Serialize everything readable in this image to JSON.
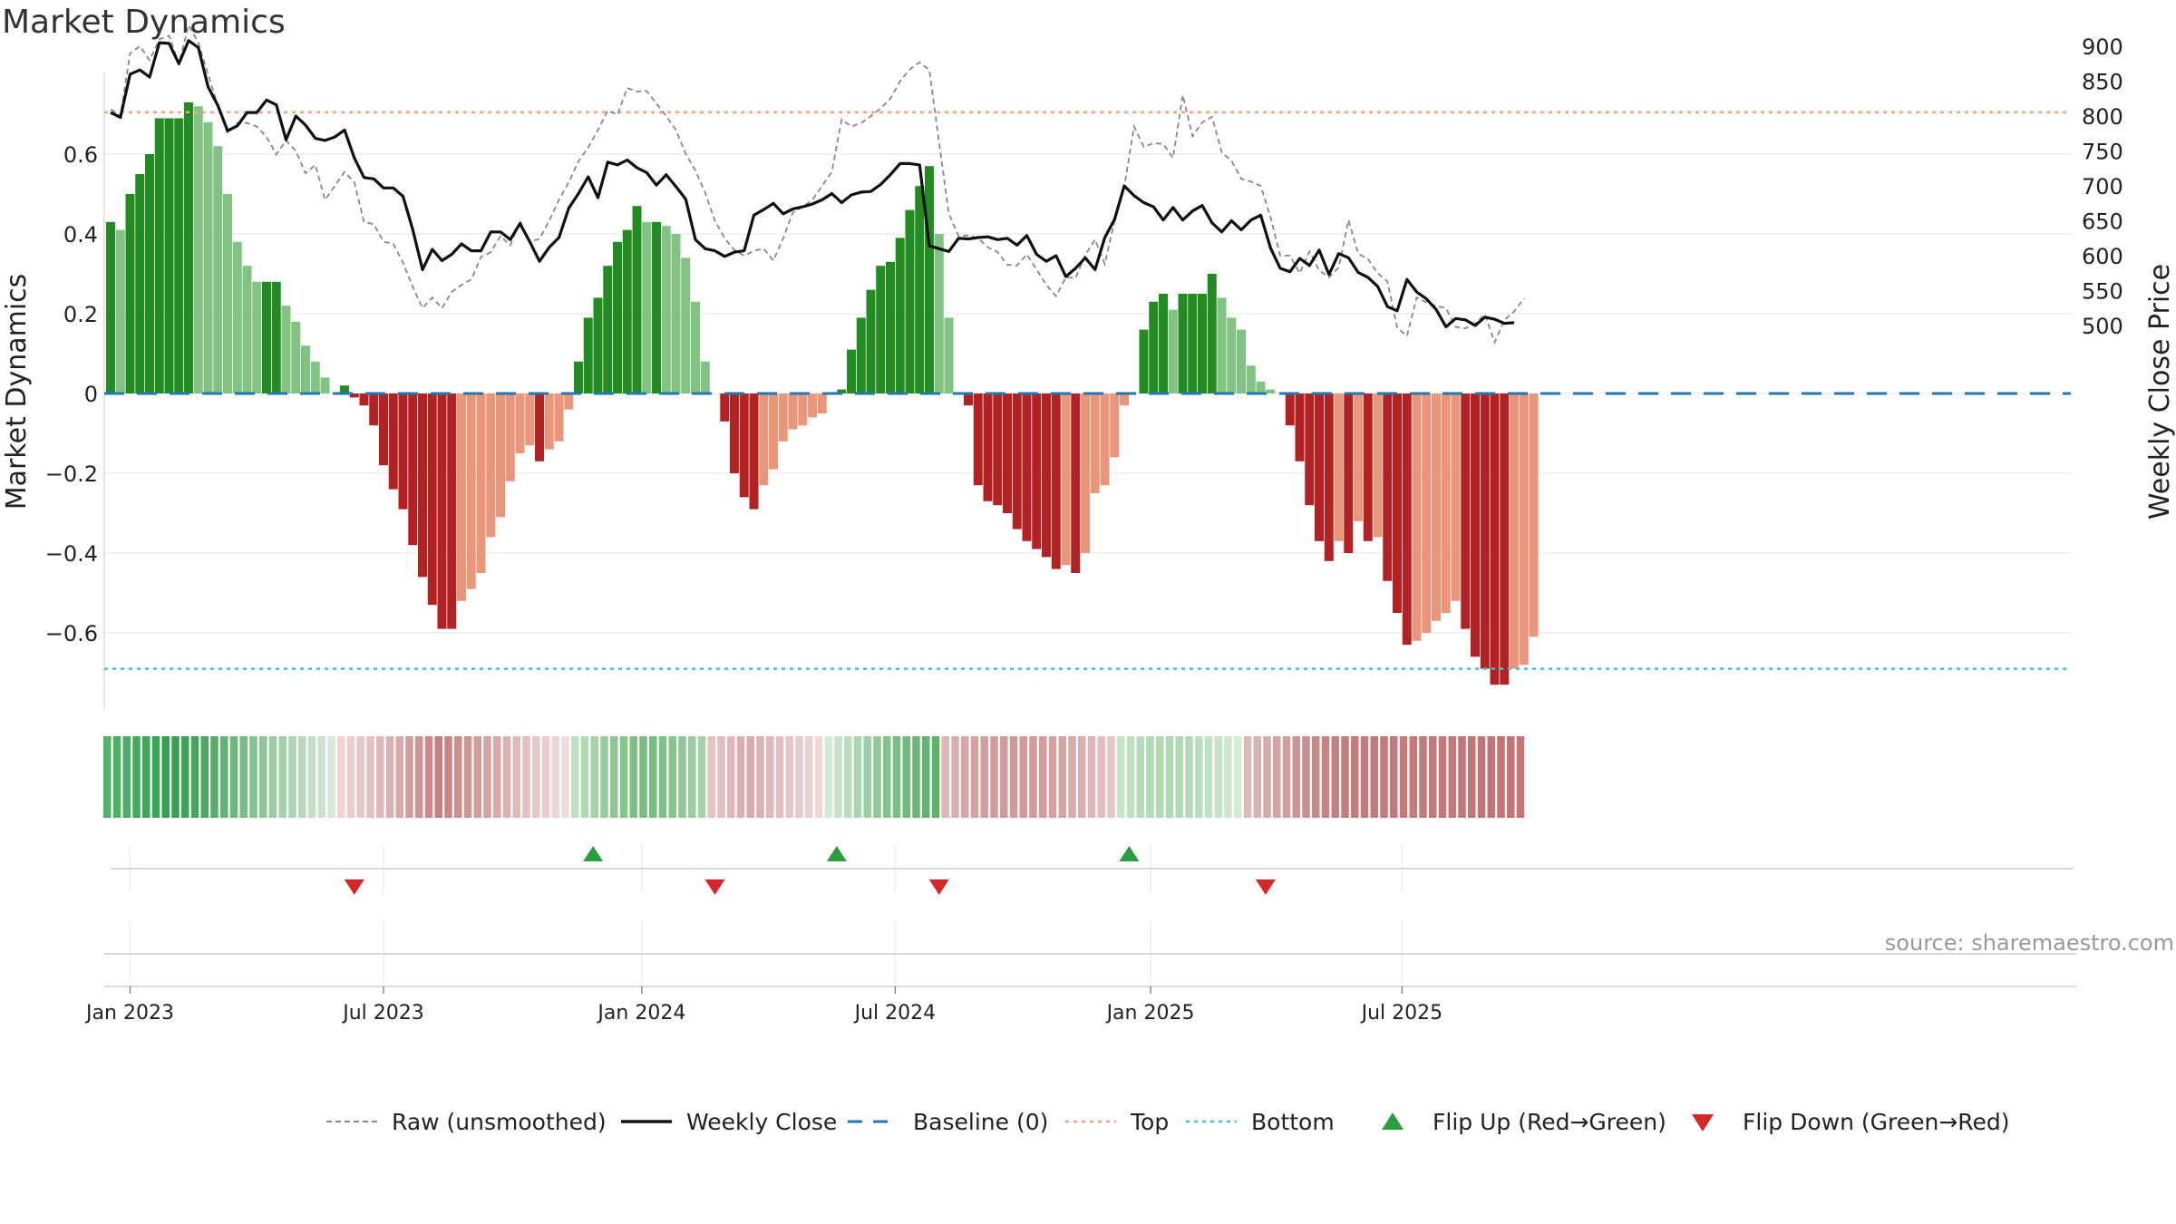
{
  "chart_data": {
    "type": "bar",
    "title": "Market Dynamics",
    "ylabel_left": "Market Dynamics",
    "ylabel_right": "Weekly Close Price",
    "ylim_left": [
      -0.78,
      0.8
    ],
    "ylim_right": [
      475,
      1000
    ],
    "y_ticks_left": [
      0.6,
      0.4,
      0.2,
      0,
      -0.2,
      -0.4,
      -0.6
    ],
    "y_tick_labels_left": [
      "0.6",
      "0.4",
      "0.2",
      "0",
      "−0.2",
      "−0.4",
      "−0.6"
    ],
    "y_ticks_right": [
      900,
      850,
      800,
      750,
      700,
      650,
      600,
      550,
      500
    ],
    "y_tick_labels_right": [
      "900",
      "850",
      "800",
      "750",
      "700",
      "650",
      "600",
      "550",
      "500"
    ],
    "x_ticks": [
      {
        "label": "Jan 2023",
        "week": 2
      },
      {
        "label": "Jul 2023",
        "week": 28
      },
      {
        "label": "Jan 2024",
        "week": 54.5
      },
      {
        "label": "Jul 2024",
        "week": 80.5
      },
      {
        "label": "Jan 2025",
        "week": 106.7
      },
      {
        "label": "Jul 2025",
        "week": 132.5
      }
    ],
    "top_level": 0.705,
    "bottom_level": -0.69,
    "baseline": 0,
    "bar_values": [
      0.43,
      0.41,
      0.5,
      0.55,
      0.6,
      0.69,
      0.69,
      0.69,
      0.73,
      0.72,
      0.68,
      0.62,
      0.5,
      0.38,
      0.32,
      0.28,
      0.28,
      0.28,
      0.22,
      0.18,
      0.12,
      0.08,
      0.04,
      0.0,
      0.02,
      -0.01,
      -0.03,
      -0.08,
      -0.18,
      -0.24,
      -0.29,
      -0.38,
      -0.46,
      -0.53,
      -0.59,
      -0.59,
      -0.52,
      -0.49,
      -0.45,
      -0.36,
      -0.31,
      -0.22,
      -0.15,
      -0.13,
      -0.17,
      -0.14,
      -0.12,
      -0.04,
      0.08,
      0.19,
      0.24,
      0.32,
      0.38,
      0.41,
      0.47,
      0.43,
      0.43,
      0.42,
      0.4,
      0.34,
      0.23,
      0.08,
      0.0,
      -0.07,
      -0.2,
      -0.26,
      -0.29,
      -0.23,
      -0.19,
      -0.12,
      -0.09,
      -0.08,
      -0.06,
      -0.05,
      0.0,
      0.01,
      0.11,
      0.19,
      0.26,
      0.32,
      0.33,
      0.39,
      0.46,
      0.52,
      0.57,
      0.4,
      0.19,
      0.0,
      -0.03,
      -0.23,
      -0.27,
      -0.28,
      -0.3,
      -0.34,
      -0.37,
      -0.39,
      -0.41,
      -0.44,
      -0.43,
      -0.45,
      -0.4,
      -0.25,
      -0.23,
      -0.16,
      -0.03,
      0.0,
      0.16,
      0.23,
      0.25,
      0.21,
      0.25,
      0.25,
      0.25,
      0.3,
      0.24,
      0.19,
      0.16,
      0.07,
      0.03,
      0.01,
      0.0,
      -0.08,
      -0.17,
      -0.28,
      -0.37,
      -0.42,
      -0.37,
      -0.4,
      -0.32,
      -0.37,
      -0.36,
      -0.47,
      -0.55,
      -0.63,
      -0.62,
      -0.6,
      -0.57,
      -0.55,
      -0.52,
      -0.59,
      -0.66,
      -0.69,
      -0.73,
      -0.73,
      -0.69,
      -0.68,
      -0.61
    ],
    "close": [
      805,
      798,
      860,
      866,
      856,
      905,
      904,
      875,
      908,
      898,
      842,
      815,
      779,
      786,
      805,
      805,
      823,
      816,
      766,
      800,
      787,
      768,
      765,
      770,
      780,
      740,
      712,
      710,
      697,
      697,
      685,
      637,
      580,
      609,
      593,
      602,
      617,
      607,
      607,
      634,
      634,
      623,
      646,
      620,
      592,
      612,
      626,
      668,
      689,
      713,
      683,
      734,
      730,
      737,
      726,
      719,
      701,
      716,
      699,
      681,
      623,
      610,
      607,
      599,
      605,
      607,
      658,
      666,
      675,
      660,
      667,
      670,
      674,
      680,
      689,
      676,
      687,
      691,
      692,
      702,
      716,
      732,
      732,
      730,
      614,
      610,
      606,
      625,
      624,
      626,
      627,
      623,
      625,
      615,
      629,
      602,
      592,
      600,
      570,
      582,
      597,
      580,
      626,
      652,
      700,
      686,
      676,
      670,
      651,
      669,
      651,
      664,
      672,
      647,
      634,
      650,
      637,
      651,
      658,
      611,
      582,
      577,
      596,
      586,
      608,
      573,
      603,
      597,
      576,
      569,
      556,
      527,
      521,
      566,
      548,
      538,
      523,
      498,
      510,
      508,
      500,
      512,
      509,
      503,
      504
    ],
    "raw": [
      810,
      800,
      890,
      900,
      880,
      910,
      915,
      875,
      930,
      905,
      860,
      815,
      775,
      790,
      790,
      785,
      770,
      745,
      765,
      750,
      718,
      730,
      680,
      700,
      720,
      705,
      648,
      645,
      620,
      617,
      590,
      555,
      525,
      540,
      525,
      548,
      558,
      566,
      598,
      605,
      628,
      615,
      650,
      620,
      624,
      650,
      680,
      705,
      735,
      755,
      780,
      808,
      802,
      840,
      835,
      836,
      818,
      800,
      780,
      746,
      722,
      690,
      650,
      625,
      608,
      600,
      607,
      610,
      593,
      625,
      662,
      670,
      680,
      700,
      720,
      795,
      785,
      790,
      800,
      811,
      825,
      850,
      867,
      877,
      866,
      762,
      660,
      628,
      629,
      625,
      612,
      605,
      587,
      586,
      602,
      580,
      558,
      542,
      569,
      568,
      601,
      623,
      588,
      650,
      698,
      785,
      756,
      761,
      760,
      740,
      830,
      771,
      791,
      799,
      748,
      736,
      710,
      706,
      700,
      655,
      600,
      600,
      575,
      606,
      579,
      569,
      583,
      651,
      603,
      595,
      575,
      563,
      497,
      485,
      540,
      533,
      528,
      525,
      498,
      496,
      503,
      516,
      476,
      508,
      520,
      539
    ],
    "flip_up_weeks": [
      49.5,
      74.5,
      104.5
    ],
    "flip_down_weeks": [
      25,
      62,
      85,
      118.5
    ],
    "heat_colors": [
      "#55b26a",
      "#4faf66",
      "#4aad61",
      "#44aa5c",
      "#3fa758",
      "#39a453",
      "#369f50",
      "#3aa153",
      "#3fa457",
      "#44a65b",
      "#4ca962",
      "#56ad6a",
      "#61b273",
      "#6db77c",
      "#79bd86",
      "#84c28f",
      "#8fc698",
      "#9acba1",
      "#a4d0aa",
      "#afd4b3",
      "#b9d9bb",
      "#c4ddc4",
      "#cfe2cd",
      "#d9e7d5",
      "#eed3d3",
      "#ebcdcd",
      "#e8c7c7",
      "#e4c0c0",
      "#e0b8b8",
      "#dcb0b0",
      "#d8a7a7",
      "#d49d9d",
      "#cf9393",
      "#cb8989",
      "#c78080",
      "#c98686",
      "#cd8e8e",
      "#d09595",
      "#d39c9c",
      "#d6a3a3",
      "#d9aaaa",
      "#dcb1b1",
      "#dfb8b8",
      "#e3c0c0",
      "#e6c7c7",
      "#e9cece",
      "#edd5d5",
      "#f0dcdc",
      "#bfe0c2",
      "#b1d9b5",
      "#a4d3a9",
      "#97cd9e",
      "#8cc794",
      "#84c48d",
      "#7dc086",
      "#78be82",
      "#78be82",
      "#7ec187",
      "#86c48e",
      "#8fc896",
      "#9acda0",
      "#a6d2ab",
      "#e6c3c3",
      "#e3bdbd",
      "#e0b6b6",
      "#ddb0b0",
      "#dbabab",
      "#dcb0b0",
      "#dfb7b7",
      "#e2bebe",
      "#e5c5c5",
      "#e7cbcb",
      "#ead1d1",
      "#edd7d7",
      "#d3ebd5",
      "#c5e4c8",
      "#b7ddbb",
      "#a9d6ae",
      "#9ccfa2",
      "#8fc996",
      "#84c38c",
      "#7abe83",
      "#71ba7b",
      "#69b675",
      "#64b470",
      "#60b26c",
      "#dfb6b6",
      "#dbadad",
      "#d8a6a6",
      "#d6a1a1",
      "#d49e9e",
      "#d39b9b",
      "#d29a9a",
      "#d29999",
      "#d29999",
      "#d29a9a",
      "#d39c9c",
      "#d5a0a0",
      "#d7a4a4",
      "#d9aaaa",
      "#dcb0b0",
      "#dfb7b7",
      "#e2bebe",
      "#e5c5c5",
      "#c6e5c9",
      "#bfe1c2",
      "#b8ddbc",
      "#b3dab7",
      "#b0d9b4",
      "#afd8b3",
      "#b1d9b5",
      "#b5dbb9",
      "#badebd",
      "#c0e1c3",
      "#c6e4c9",
      "#cde7cf",
      "#d3ead5",
      "#dab9b9",
      "#d8b3b3",
      "#d5acac",
      "#d2a5a5",
      "#cf9e9e",
      "#cc9696",
      "#ca8f8f",
      "#c88989",
      "#c68484",
      "#c58181",
      "#c47e7e",
      "#c47c7c",
      "#c47b7b",
      "#c47a7a",
      "#c47a7a",
      "#c47a7a",
      "#c47a7a",
      "#c47a7a",
      "#c47a7a",
      "#c47979",
      "#c47878",
      "#c47777",
      "#c47676",
      "#c47575",
      "#c47474",
      "#c47373",
      "#c57373",
      "#c57373",
      "#c67575"
    ],
    "source_label": "source: sharemaestro.com",
    "legend": [
      {
        "label": "Raw (unsmoothed)",
        "kind": "dashed-line",
        "color": "#888888"
      },
      {
        "label": "Weekly Close",
        "kind": "line",
        "color": "#111111"
      },
      {
        "label": "Baseline (0)",
        "kind": "dash-line",
        "color": "#1f77b4"
      },
      {
        "label": "Top",
        "kind": "dot-line",
        "color": "#f4a57e"
      },
      {
        "label": "Bottom",
        "kind": "dot-line",
        "color": "#3ec3d6"
      },
      {
        "label": "Flip Up (Red→Green)",
        "kind": "triangle-up",
        "color": "#2a9d3f"
      },
      {
        "label": "Flip Down (Green→Red)",
        "kind": "triangle-down",
        "color": "#d62728"
      }
    ]
  },
  "colors": {
    "strong_green": "#228b22",
    "light_green": "#82c282",
    "strong_red": "#b22222",
    "light_red": "#e9967a",
    "close_line": "#111111",
    "raw_line": "#888888",
    "baseline": "#1f77b4",
    "top": "#f4a57e",
    "bottom": "#3ec3d6",
    "flip_up": "#2a9d3f",
    "flip_down": "#d62728"
  }
}
